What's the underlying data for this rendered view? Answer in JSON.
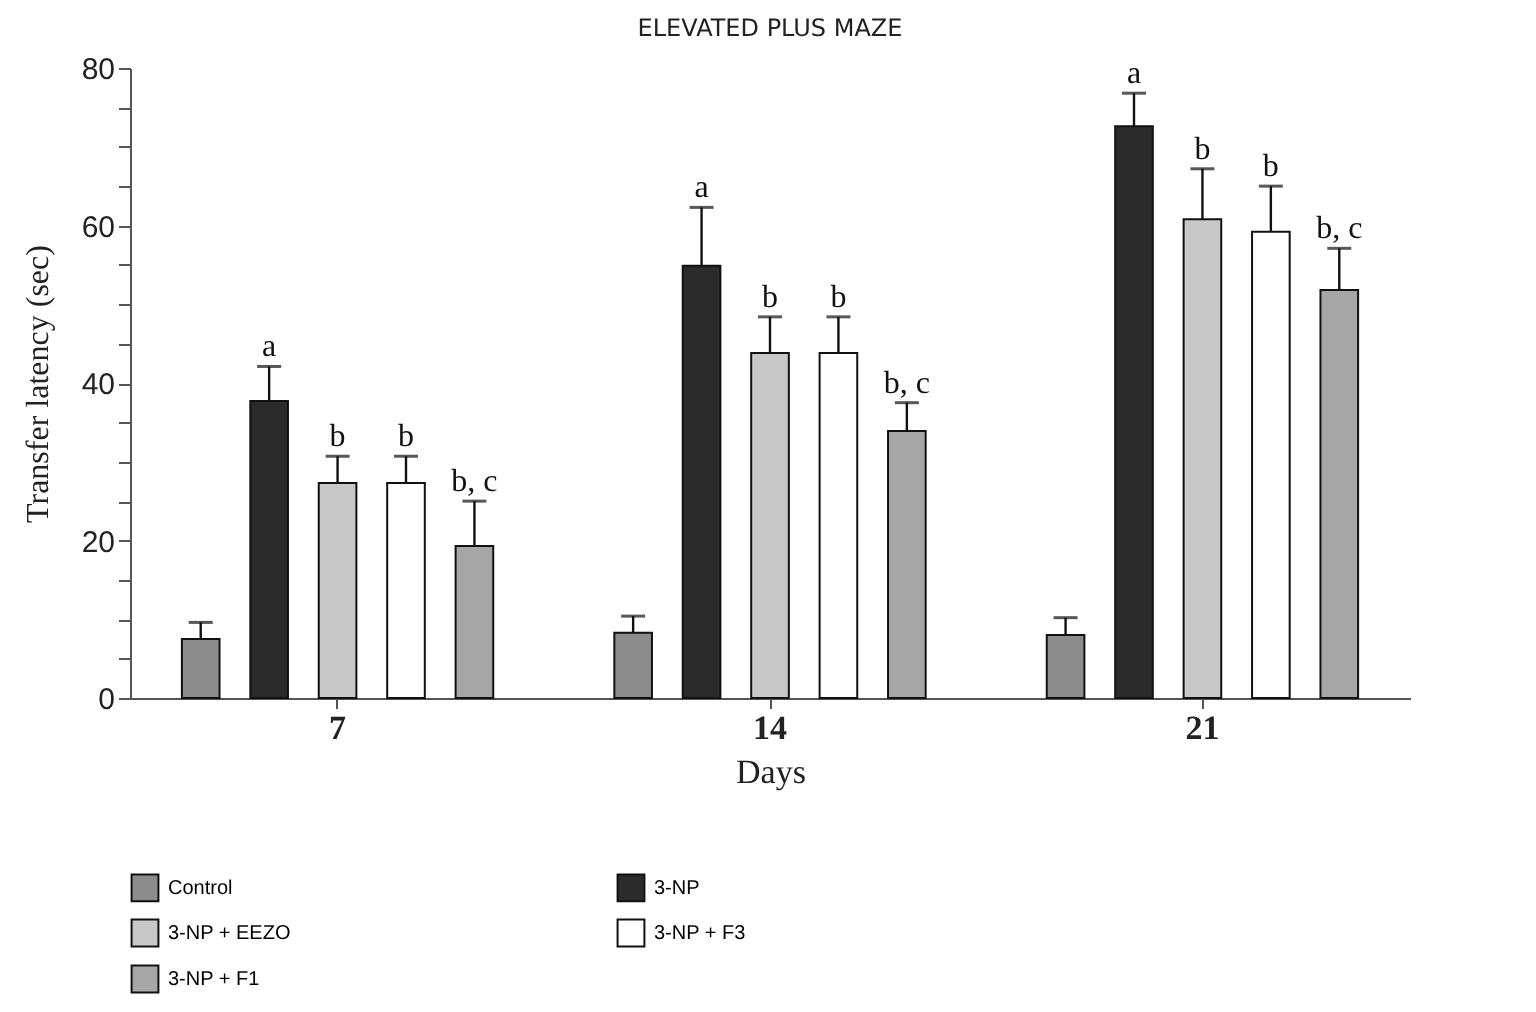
{
  "chart_data": {
    "type": "bar",
    "title": "ELEVATED PLUS MAZE",
    "xlabel": "Days",
    "ylabel": "Transfer latency (sec)",
    "categories": [
      "7",
      "14",
      "21"
    ],
    "series": [
      {
        "name": "Control",
        "color": "#8c8c8c",
        "values": [
          7.5,
          8.3,
          8.0
        ],
        "errors": [
          [
            7.5,
            9.6
          ],
          [
            8.3,
            10.4
          ],
          [
            8.0,
            10.2
          ]
        ]
      },
      {
        "name": "3-NP",
        "color": "#2b2b2b",
        "values": [
          37.7,
          54.9,
          72.6
        ],
        "errors": [
          [
            37.7,
            42.1
          ],
          [
            54.9,
            62.3
          ],
          [
            72.6,
            76.8
          ]
        ]
      },
      {
        "name": "3-NP + EEZO",
        "color": "#c8c8c8",
        "values": [
          27.3,
          43.8,
          60.8
        ],
        "errors": [
          [
            27.3,
            30.7
          ],
          [
            43.8,
            48.4
          ],
          [
            60.8,
            67.2
          ]
        ]
      },
      {
        "name": "3-NP + F3",
        "color": "#ffffff",
        "values": [
          27.3,
          43.8,
          59.2
        ],
        "errors": [
          [
            27.3,
            30.7
          ],
          [
            43.8,
            48.4
          ],
          [
            59.2,
            65.0
          ]
        ]
      },
      {
        "name": "3-NP + F1",
        "color": "#a6a6a6",
        "values": [
          19.3,
          33.9,
          51.8
        ],
        "errors": [
          [
            19.3,
            25.0
          ],
          [
            33.9,
            37.5
          ],
          [
            51.8,
            57.1
          ]
        ]
      }
    ],
    "ylim": [
      0,
      80
    ],
    "yticks": [
      0,
      {
        "value": 5,
        "label": null
      },
      {
        "value": 10,
        "label": null
      },
      {
        "value": 15,
        "label": null
      },
      20,
      {
        "value": 25,
        "label": null
      },
      {
        "value": 30,
        "label": null
      },
      {
        "value": 35,
        "label": null
      },
      40,
      {
        "value": 45,
        "label": null
      },
      {
        "value": 50,
        "label": null
      },
      {
        "value": 55,
        "label": null
      },
      60,
      {
        "value": 65,
        "label": null
      },
      {
        "value": 70,
        "label": null
      },
      {
        "value": 75,
        "label": null
      },
      80
    ],
    "annotations": [
      "a",
      "b",
      "b",
      "b, c",
      "a",
      "b",
      "b",
      "b, c",
      "a",
      "b",
      "b",
      "b, c"
    ],
    "grid": false,
    "legend": "bottom"
  }
}
